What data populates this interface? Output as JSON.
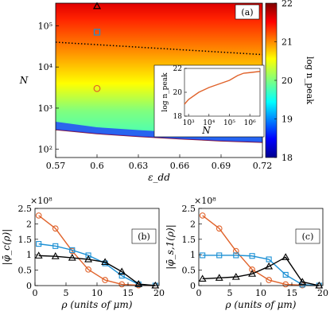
{
  "chart_data": [
    {
      "type": "heatmap",
      "panel_label": "(a)",
      "xlabel": "ε_dd",
      "ylabel": "N",
      "xlim": [
        0.57,
        0.72
      ],
      "ylim_log10": [
        1.8,
        5.55
      ],
      "x_ticks": [
        0.57,
        0.6,
        0.63,
        0.66,
        0.69,
        0.72
      ],
      "x_tick_labels": [
        "0.57",
        "0.6",
        "0.63",
        "0.66",
        "0.69",
        "0.72"
      ],
      "y_ticks": [
        100,
        1000,
        10000,
        100000
      ],
      "y_tick_labels": [
        "10²",
        "10³",
        "10⁴",
        "10⁵"
      ],
      "colorbar": {
        "label": "log n_peak",
        "min": 18,
        "max": 22,
        "ticks": [
          18,
          19,
          20,
          21,
          22
        ],
        "tick_labels": [
          "18",
          "19",
          "20",
          "21",
          "22"
        ]
      },
      "markers": [
        {
          "shape": "triangle",
          "x": 0.6,
          "y": 300000,
          "color": "#000000"
        },
        {
          "shape": "square",
          "x": 0.6,
          "y": 70000,
          "color": "#1a8fd4"
        },
        {
          "shape": "circle",
          "x": 0.6,
          "y": 3000,
          "color": "#e0622a"
        }
      ],
      "dotted_line": {
        "x": [
          0.57,
          0.72
        ],
        "y": [
          40000,
          20000
        ]
      },
      "lower_boundary": {
        "x": [
          0.57,
          0.6,
          0.63,
          0.66,
          0.69,
          0.72
        ],
        "y": [
          300,
          240,
          205,
          180,
          160,
          148
        ]
      },
      "inset": {
        "type": "line",
        "xlabel": "N",
        "ylabel": "log n_peak",
        "ylim": [
          18,
          22
        ],
        "xlim_log10": [
          2.8,
          6.5
        ],
        "x_tick_labels": [
          "10³",
          "10⁴",
          "10⁵",
          "10⁶"
        ],
        "y_tick_labels": [
          "18",
          "20",
          "22"
        ],
        "x_log10": [
          2.8,
          3.0,
          3.5,
          4.0,
          4.5,
          5.0,
          5.4,
          5.7,
          6.0,
          6.5
        ],
        "values": [
          19.0,
          19.4,
          20.0,
          20.4,
          20.7,
          21.0,
          21.4,
          21.6,
          21.65,
          21.75
        ],
        "color": "#e0622a"
      }
    },
    {
      "type": "line",
      "panel_label": "(b)",
      "xlabel": "ρ (units of μm)",
      "ylabel": "|φ̄_c(ρ)|",
      "multiplier": "×10⁸",
      "xlim": [
        0,
        20
      ],
      "ylim": [
        0,
        2.5
      ],
      "x_ticks": [
        0,
        5,
        10,
        15,
        20
      ],
      "x_tick_labels": [
        "0",
        "5",
        "10",
        "15",
        "20"
      ],
      "y_ticks": [
        0,
        0.5,
        1,
        1.5,
        2,
        2.5
      ],
      "y_tick_labels": [
        "0",
        "0.5",
        "1",
        "1.5",
        "2",
        "2.5"
      ],
      "series": [
        {
          "color": "#e0622a",
          "marker": "circle",
          "x": [
            0.6,
            3.3,
            6.0,
            8.6,
            11.3,
            14.0,
            16.7,
            19.4
          ],
          "y": [
            2.27,
            1.85,
            1.12,
            0.52,
            0.18,
            0.04,
            0.01,
            0.0
          ]
        },
        {
          "color": "#1a8fd4",
          "marker": "square",
          "x": [
            0.6,
            3.3,
            6.0,
            8.6,
            11.3,
            14.0,
            16.7,
            19.4
          ],
          "y": [
            1.35,
            1.28,
            1.15,
            0.98,
            0.72,
            0.32,
            0.04,
            0.0
          ]
        },
        {
          "color": "#000000",
          "marker": "triangle",
          "x": [
            0.6,
            3.3,
            6.0,
            8.6,
            11.3,
            14.0,
            16.7,
            19.4
          ],
          "y": [
            0.97,
            0.95,
            0.9,
            0.85,
            0.76,
            0.45,
            0.05,
            0.0
          ]
        }
      ]
    },
    {
      "type": "line",
      "panel_label": "(c)",
      "xlabel": "ρ (units of μm)",
      "ylabel": "|φ̄_s,1(ρ)|",
      "multiplier": "×10⁸",
      "xlim": [
        0,
        20
      ],
      "ylim": [
        0,
        2.5
      ],
      "x_ticks": [
        0,
        5,
        10,
        15,
        20
      ],
      "x_tick_labels": [
        "0",
        "5",
        "10",
        "15",
        "20"
      ],
      "y_ticks": [
        0,
        0.5,
        1,
        1.5,
        2,
        2.5
      ],
      "y_tick_labels": [
        "0",
        "0.5",
        "1",
        "1.5",
        "2",
        "2.5"
      ],
      "series": [
        {
          "color": "#e0622a",
          "marker": "circle",
          "x": [
            0.6,
            3.3,
            6.0,
            8.6,
            11.3,
            14.0,
            16.7,
            19.4
          ],
          "y": [
            2.27,
            1.85,
            1.12,
            0.52,
            0.18,
            0.04,
            0.01,
            0.0
          ]
        },
        {
          "color": "#1a8fd4",
          "marker": "square",
          "x": [
            0.6,
            3.3,
            6.0,
            8.6,
            11.3,
            14.0,
            16.7,
            19.4
          ],
          "y": [
            0.98,
            0.98,
            0.98,
            0.96,
            0.85,
            0.35,
            0.03,
            0.0
          ]
        },
        {
          "color": "#000000",
          "marker": "triangle",
          "x": [
            0.6,
            3.3,
            6.0,
            8.6,
            11.3,
            14.0,
            16.7,
            19.4
          ],
          "y": [
            0.22,
            0.25,
            0.28,
            0.38,
            0.62,
            0.92,
            0.12,
            0.0
          ]
        }
      ]
    }
  ]
}
